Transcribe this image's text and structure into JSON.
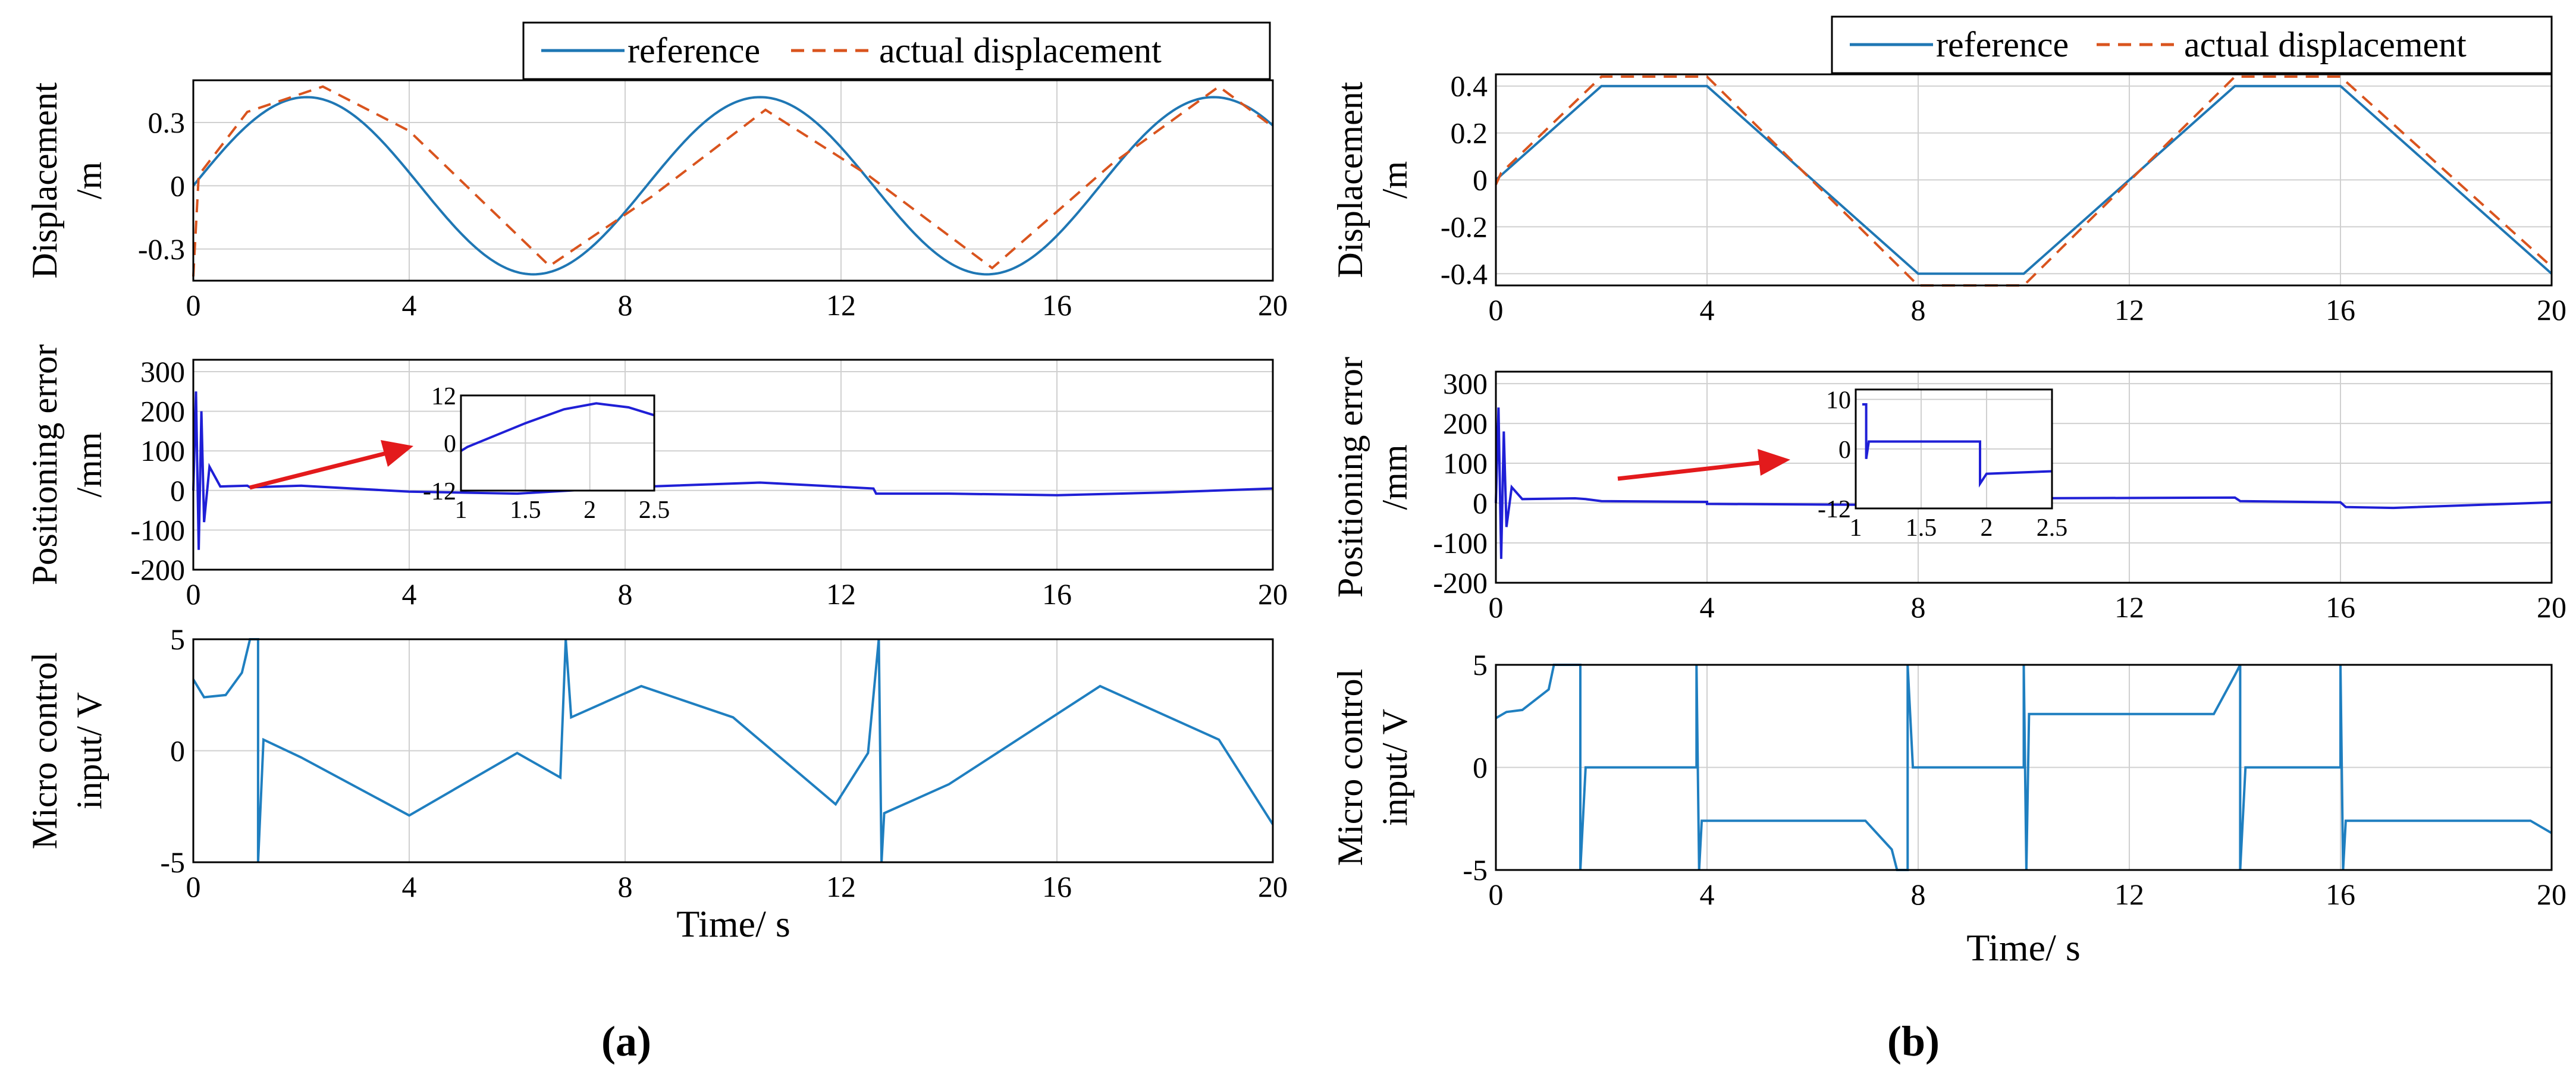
{
  "figure": {
    "panel_labels": [
      "(a)",
      "(b)"
    ],
    "x_axis_label": "Time/ s"
  },
  "legend": {
    "reference": "reference",
    "actual": "actual displacement"
  },
  "colors": {
    "reference": "#1f77b4",
    "actual": "#d9541e",
    "error": "#1f1fd6",
    "control": "#1f7fc0",
    "arrow": "#e31a1c"
  },
  "chart_data": [
    {
      "id": "a-displacement",
      "type": "line",
      "panel": "(a)",
      "ylabel": [
        "Displacement",
        "/m"
      ],
      "xlim": [
        0,
        20
      ],
      "ylim": [
        -0.45,
        0.5
      ],
      "xticks": [
        "0",
        "4",
        "8",
        "12",
        "16",
        "20"
      ],
      "yticks": [
        {
          "v": 0.3,
          "t": "0.3"
        },
        {
          "v": 0,
          "t": "0"
        },
        {
          "v": -0.3,
          "t": "-0.3"
        }
      ],
      "series": [
        {
          "name": "reference",
          "function": "0.42*sin(2*pi*t/8.4)",
          "style": "solid"
        },
        {
          "name": "actual displacement",
          "function": "0.42*sin(2*pi*(t-0.3)/8.4) + ~0.04 offset",
          "style": "dashed",
          "points": [
            [
              0,
              -0.43
            ],
            [
              0.1,
              0.05
            ],
            [
              1,
              0.35
            ],
            [
              2.4,
              0.47
            ],
            [
              4,
              0.26
            ],
            [
              6.6,
              -0.38
            ],
            [
              8.5,
              -0.05
            ],
            [
              10.6,
              0.36
            ],
            [
              12.5,
              0.05
            ],
            [
              14.8,
              -0.39
            ],
            [
              17,
              0.1
            ],
            [
              19,
              0.47
            ],
            [
              20,
              0.28
            ]
          ]
        }
      ]
    },
    {
      "id": "a-error",
      "type": "line",
      "panel": "(a)",
      "ylabel": [
        "Positioning error",
        "/mm"
      ],
      "xlim": [
        0,
        20
      ],
      "ylim": [
        -200,
        330
      ],
      "xticks": [
        "0",
        "4",
        "8",
        "12",
        "16",
        "20"
      ],
      "yticks": [
        {
          "v": 300,
          "t": "300"
        },
        {
          "v": 200,
          "t": "200"
        },
        {
          "v": 100,
          "t": "100"
        },
        {
          "v": 0,
          "t": "0"
        },
        {
          "v": -100,
          "t": "-100"
        },
        {
          "v": -200,
          "t": "-200"
        }
      ],
      "series": [
        {
          "name": "positioning error",
          "points": [
            [
              0,
              0
            ],
            [
              0.05,
              250
            ],
            [
              0.1,
              -150
            ],
            [
              0.15,
              200
            ],
            [
              0.2,
              -80
            ],
            [
              0.3,
              60
            ],
            [
              0.5,
              10
            ],
            [
              1,
              12
            ],
            [
              1.05,
              8
            ],
            [
              2,
              12
            ],
            [
              4,
              -3
            ],
            [
              6,
              -8
            ],
            [
              8,
              8
            ],
            [
              10.5,
              20
            ],
            [
              12.6,
              5
            ],
            [
              12.65,
              -8
            ],
            [
              14,
              -8
            ],
            [
              16,
              -12
            ],
            [
              18,
              -5
            ],
            [
              20,
              5
            ]
          ]
        }
      ],
      "inset": {
        "xlim": [
          1,
          2.5
        ],
        "ylim": [
          -12,
          12
        ],
        "xticks": [
          "1",
          "1.5",
          "2",
          "2.5"
        ],
        "yticks": [
          {
            "v": 12,
            "t": "12"
          },
          {
            "v": 0,
            "t": "0"
          },
          {
            "v": -12,
            "t": "-12"
          }
        ],
        "points": [
          [
            1,
            -2
          ],
          [
            1.05,
            -1
          ],
          [
            1.2,
            1
          ],
          [
            1.5,
            5
          ],
          [
            1.8,
            8.5
          ],
          [
            2.05,
            10
          ],
          [
            2.3,
            9
          ],
          [
            2.5,
            7
          ]
        ]
      }
    },
    {
      "id": "a-control",
      "type": "line",
      "panel": "(a)",
      "ylabel": [
        "Micro control",
        "input/ V"
      ],
      "xlim": [
        0,
        20
      ],
      "ylim": [
        -5,
        5
      ],
      "xticks": [
        "0",
        "4",
        "8",
        "12",
        "16",
        "20"
      ],
      "yticks": [
        {
          "v": 5,
          "t": "5"
        },
        {
          "v": 0,
          "t": "0"
        },
        {
          "v": -5,
          "t": "-5"
        }
      ],
      "series": [
        {
          "name": "micro control input",
          "points": [
            [
              0,
              3.2
            ],
            [
              0.2,
              2.4
            ],
            [
              0.6,
              2.5
            ],
            [
              0.9,
              3.5
            ],
            [
              1.05,
              5
            ],
            [
              1.2,
              5
            ],
            [
              1.2,
              -5
            ],
            [
              1.3,
              0.5
            ],
            [
              2,
              -0.3
            ],
            [
              4,
              -2.9
            ],
            [
              6,
              -0.1
            ],
            [
              6.8,
              -1.2
            ],
            [
              6.9,
              5
            ],
            [
              7,
              1.5
            ],
            [
              8.3,
              2.9
            ],
            [
              10,
              1.5
            ],
            [
              11.9,
              -2.4
            ],
            [
              12.5,
              -0.1
            ],
            [
              12.7,
              5
            ],
            [
              12.75,
              -5
            ],
            [
              12.8,
              -2.8
            ],
            [
              14,
              -1.5
            ],
            [
              16.8,
              2.9
            ],
            [
              19,
              0.5
            ],
            [
              20,
              -3.3
            ]
          ]
        }
      ]
    },
    {
      "id": "b-displacement",
      "type": "line",
      "panel": "(b)",
      "ylabel": [
        "Displacement",
        "/m"
      ],
      "xlim": [
        0,
        20
      ],
      "ylim": [
        -0.45,
        0.45
      ],
      "xticks": [
        "0",
        "4",
        "8",
        "12",
        "16",
        "20"
      ],
      "yticks": [
        {
          "v": 0.4,
          "t": "0.4"
        },
        {
          "v": 0.2,
          "t": "0.2"
        },
        {
          "v": 0,
          "t": "0"
        },
        {
          "v": -0.2,
          "t": "-0.2"
        },
        {
          "v": -0.4,
          "t": "-0.4"
        }
      ],
      "series": [
        {
          "name": "reference",
          "style": "solid",
          "points": [
            [
              0,
              0
            ],
            [
              2,
              0.4
            ],
            [
              4,
              0.4
            ],
            [
              8,
              -0.4
            ],
            [
              10,
              -0.4
            ],
            [
              14,
              0.4
            ],
            [
              16,
              0.4
            ],
            [
              20,
              -0.4
            ]
          ]
        },
        {
          "name": "actual displacement",
          "style": "dashed",
          "points": [
            [
              0,
              -0.02
            ],
            [
              0.1,
              0.03
            ],
            [
              2,
              0.44
            ],
            [
              4,
              0.44
            ],
            [
              8,
              -0.45
            ],
            [
              10,
              -0.45
            ],
            [
              14,
              0.44
            ],
            [
              16,
              0.44
            ],
            [
              20,
              -0.37
            ]
          ]
        }
      ]
    },
    {
      "id": "b-error",
      "type": "line",
      "panel": "(b)",
      "ylabel": [
        "Positioning error",
        "/mm"
      ],
      "xlim": [
        0,
        20
      ],
      "ylim": [
        -200,
        330
      ],
      "xticks": [
        "0",
        "4",
        "8",
        "12",
        "16",
        "20"
      ],
      "yticks": [
        {
          "v": 300,
          "t": "300"
        },
        {
          "v": 200,
          "t": "200"
        },
        {
          "v": 100,
          "t": "100"
        },
        {
          "v": 0,
          "t": "0"
        },
        {
          "v": -100,
          "t": "-100"
        },
        {
          "v": -200,
          "t": "-200"
        }
      ],
      "series": [
        {
          "name": "positioning error",
          "points": [
            [
              0,
              0
            ],
            [
              0.05,
              240
            ],
            [
              0.1,
              -140
            ],
            [
              0.15,
              180
            ],
            [
              0.2,
              -60
            ],
            [
              0.3,
              40
            ],
            [
              0.5,
              10
            ],
            [
              1.5,
              12
            ],
            [
              1.7,
              10
            ],
            [
              2,
              5
            ],
            [
              4,
              3
            ],
            [
              4,
              -2
            ],
            [
              8,
              -5
            ],
            [
              8.1,
              10
            ],
            [
              10,
              12
            ],
            [
              14,
              14
            ],
            [
              14.1,
              5
            ],
            [
              16,
              2
            ],
            [
              16.1,
              -10
            ],
            [
              17,
              -12
            ],
            [
              20,
              2
            ]
          ]
        }
      ],
      "inset": {
        "xlim": [
          1,
          2.5
        ],
        "ylim": [
          -12,
          12
        ],
        "xticks": [
          "1",
          "1.5",
          "2",
          "2.5"
        ],
        "yticks": [
          {
            "v": 10,
            "t": "10"
          },
          {
            "v": 0,
            "t": "0"
          },
          {
            "v": -12,
            "t": "-12"
          }
        ],
        "points": [
          [
            1.05,
            9
          ],
          [
            1.08,
            9
          ],
          [
            1.08,
            -2
          ],
          [
            1.1,
            1.5
          ],
          [
            1.95,
            1.5
          ],
          [
            1.95,
            -7
          ],
          [
            2,
            -5
          ],
          [
            2.5,
            -4.5
          ]
        ]
      }
    },
    {
      "id": "b-control",
      "type": "line",
      "panel": "(b)",
      "ylabel": [
        "Micro control",
        "input/ V"
      ],
      "xlim": [
        0,
        20
      ],
      "ylim": [
        -5,
        5
      ],
      "xticks": [
        "0",
        "4",
        "8",
        "12",
        "16",
        "20"
      ],
      "yticks": [
        {
          "v": 5,
          "t": "5"
        },
        {
          "v": 0,
          "t": "0"
        },
        {
          "v": -5,
          "t": "-5"
        }
      ],
      "series": [
        {
          "name": "micro control input",
          "points": [
            [
              0,
              2.4
            ],
            [
              0.2,
              2.7
            ],
            [
              0.5,
              2.8
            ],
            [
              1,
              3.8
            ],
            [
              1.1,
              5
            ],
            [
              1.6,
              5
            ],
            [
              1.6,
              -5
            ],
            [
              1.7,
              0
            ],
            [
              2.5,
              0
            ],
            [
              3.8,
              0
            ],
            [
              3.8,
              5
            ],
            [
              3.85,
              -5
            ],
            [
              3.9,
              -2.6
            ],
            [
              7,
              -2.6
            ],
            [
              7.5,
              -4
            ],
            [
              7.6,
              -5
            ],
            [
              7.8,
              -5
            ],
            [
              7.8,
              5
            ],
            [
              7.9,
              0
            ],
            [
              10,
              0
            ],
            [
              10,
              5
            ],
            [
              10.05,
              -5
            ],
            [
              10.1,
              2.6
            ],
            [
              13.6,
              2.6
            ],
            [
              14,
              4.5
            ],
            [
              14.1,
              5
            ],
            [
              14.1,
              -5
            ],
            [
              14.2,
              0
            ],
            [
              16,
              0
            ],
            [
              16,
              5
            ],
            [
              16.05,
              -5
            ],
            [
              16.1,
              -2.6
            ],
            [
              19.6,
              -2.6
            ],
            [
              20,
              -3.2
            ]
          ]
        }
      ]
    }
  ]
}
